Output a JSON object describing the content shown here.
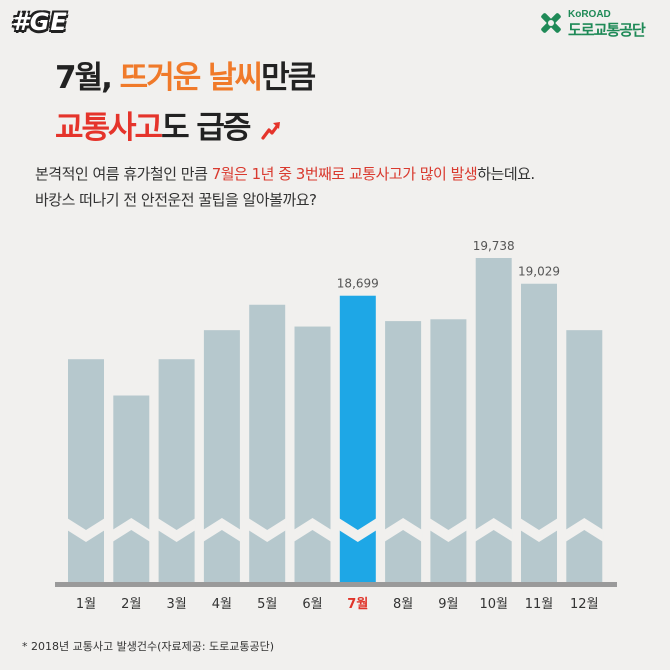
{
  "badge": "#GE",
  "logo": {
    "en": "KoROAD",
    "ko": "도로교통공단"
  },
  "headline": {
    "line1_a": "7월, ",
    "line1_b": "뜨거운 날씨",
    "line1_c": "만큼",
    "line2_a": "교통사고",
    "line2_b": "도 급증"
  },
  "description": {
    "line1_a": "본격적인 여름 휴가철인 만큼 ",
    "line1_b": "7월은 1년 중 3번째로 교통사고가 많이 발생",
    "line1_c": "하는데요.",
    "line2": "바캉스 떠나기 전 안전운전 꿀팁을 알아볼까요?"
  },
  "footnote": "* 2018년 교통사고 발생건수(자료제공: 도로교통공단)",
  "colors": {
    "bar": "#b6c8cd",
    "highlight": "#1ea7e6",
    "highlight_label": "#e0342a",
    "baseline": "#9a9a9a",
    "background": "#f1f0ee",
    "brand_green": "#1f8a57"
  },
  "icons": {
    "trend": "trend-up-arrow-icon",
    "logo": "koroad-cross-icon"
  },
  "chart_data": {
    "type": "bar",
    "title": "",
    "xlabel": "",
    "ylabel": "",
    "categories": [
      "1월",
      "2월",
      "3월",
      "4월",
      "5월",
      "6월",
      "7월",
      "8월",
      "9월",
      "10월",
      "11월",
      "12월"
    ],
    "values": [
      16950,
      15950,
      16950,
      17750,
      18450,
      17850,
      18699,
      18000,
      18050,
      19738,
      19029,
      17750
    ],
    "data_labels": {
      "6": "18,699",
      "9": "19,738",
      "10": "19,029"
    },
    "highlight_index": 6,
    "y_axis_broken": true,
    "ylim": [
      15000,
      20000
    ],
    "grid": false,
    "legend": "none"
  }
}
